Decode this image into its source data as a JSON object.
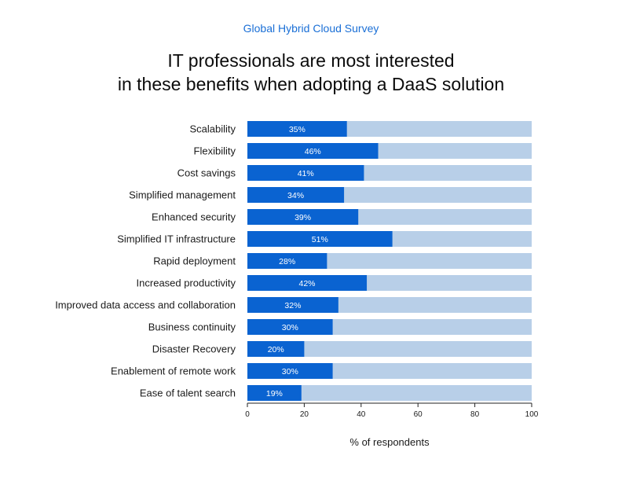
{
  "header": {
    "subtitle": "Global Hybrid Cloud Survey",
    "title_line1": "IT professionals are most interested",
    "title_line2": "in these benefits when adopting a DaaS solution"
  },
  "colors": {
    "bar": "#0a63d1",
    "track": "#b8cfe8",
    "subtitle": "#1a6fd6"
  },
  "chart_data": {
    "type": "bar",
    "orientation": "horizontal",
    "title": "IT professionals are most interested in these benefits when adopting a DaaS solution",
    "subtitle": "Global Hybrid Cloud Survey",
    "categories": [
      "Scalability",
      "Flexibility",
      "Cost savings",
      "Simplified management",
      "Enhanced security",
      "Simplified IT infrastructure",
      "Rapid deployment",
      "Increased productivity",
      "Improved data access and collaboration",
      "Business continuity",
      "Disaster Recovery",
      "Enablement of remote work",
      "Ease of talent search"
    ],
    "values": [
      35,
      46,
      41,
      34,
      39,
      51,
      28,
      42,
      32,
      30,
      20,
      30,
      19
    ],
    "value_labels": [
      "35%",
      "46%",
      "41%",
      "34%",
      "39%",
      "51%",
      "28%",
      "42%",
      "32%",
      "30%",
      "20%",
      "30%",
      "19%"
    ],
    "xlim": [
      0,
      100
    ],
    "xticks": [
      "0",
      "20",
      "40",
      "60",
      "80",
      "100"
    ],
    "xlabel": "% of respondents",
    "ylabel": "",
    "grid": false
  }
}
